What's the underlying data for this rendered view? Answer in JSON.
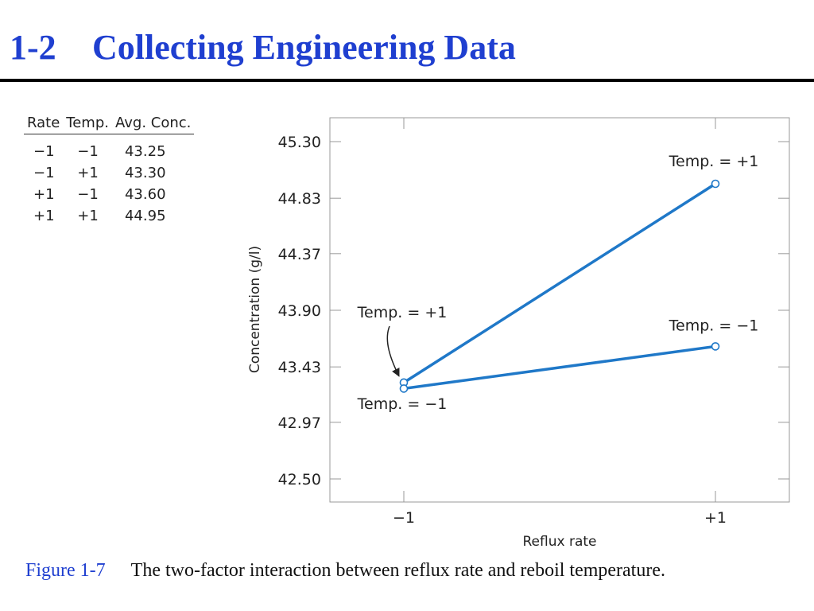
{
  "slide": {
    "title_number": "1-2",
    "title_text": "Collecting Engineering Data"
  },
  "table": {
    "headers": [
      "Rate",
      "Temp.",
      "Avg. Conc."
    ],
    "rows": [
      [
        "−1",
        "−1",
        "43.25"
      ],
      [
        "−1",
        "+1",
        "43.30"
      ],
      [
        "+1",
        "−1",
        "43.60"
      ],
      [
        "+1",
        "+1",
        "44.95"
      ]
    ]
  },
  "chart_data": {
    "type": "line",
    "x": [
      "−1",
      "+1"
    ],
    "xlabel": "Reflux rate",
    "ylabel": "Concentration (g/l)",
    "ylim": [
      42.5,
      45.3
    ],
    "yticks": [
      "45.30",
      "44.83",
      "44.37",
      "43.90",
      "43.43",
      "42.97",
      "42.50"
    ],
    "grid": false,
    "series": [
      {
        "name": "Temp. = +1",
        "values": [
          43.3,
          44.95
        ]
      },
      {
        "name": "Temp. = −1",
        "values": [
          43.25,
          43.6
        ]
      }
    ],
    "annotations": [
      {
        "text": "Temp. = +1",
        "series": 0,
        "point": 1
      },
      {
        "text": "Temp. = −1",
        "series": 1,
        "point": 1
      },
      {
        "text": "Temp. = +1",
        "series": 0,
        "point": 0,
        "arrow": true
      },
      {
        "text": "Temp. = −1",
        "series": 1,
        "point": 0
      }
    ],
    "line_color": "#1f78c8"
  },
  "caption": {
    "label": "Figure 1-7",
    "text": "The two-factor interaction between reflux rate and reboil temperature."
  }
}
